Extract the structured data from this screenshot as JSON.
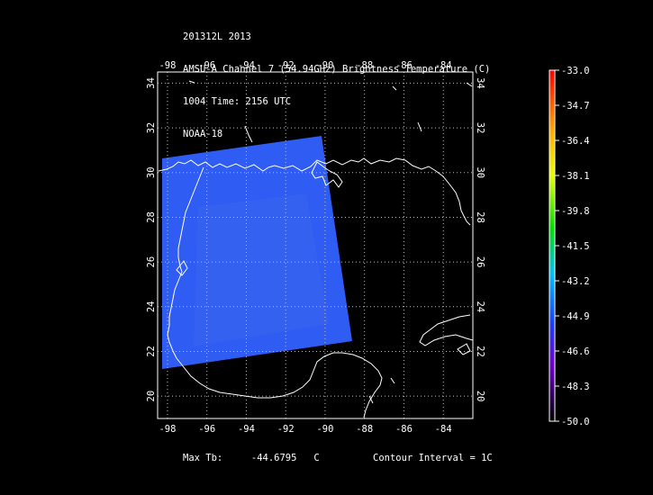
{
  "header": {
    "line1": "201312L 2013",
    "line2": "AMSU-A Channel 7 (54.94GHz) Brightness Temperature (C)",
    "line3": "1004 Time: 2156 UTC",
    "line4": "NOAA-18"
  },
  "map": {
    "lon_ticks": [
      "-98",
      "-96",
      "-94",
      "-92",
      "-90",
      "-88",
      "-86",
      "-84"
    ],
    "lat_ticks": [
      "20",
      "22",
      "24",
      "26",
      "28",
      "30",
      "32",
      "34"
    ],
    "lon_range": [
      -98.5,
      -82.5
    ],
    "lat_range": [
      19,
      34.5
    ],
    "swath_color": "#2f5cf2",
    "grid": true
  },
  "colorbar": {
    "labels": [
      "-33.0",
      "-34.7",
      "-36.4",
      "-38.1",
      "-39.8",
      "-41.5",
      "-43.2",
      "-44.9",
      "-46.6",
      "-48.3",
      "-50.0"
    ],
    "range": [
      -50.0,
      -33.0
    ]
  },
  "footer": {
    "max_label": "Max Tb:",
    "max_value": "-44.6795",
    "max_unit": "C",
    "contour": "Contour Interval = 1C"
  }
}
